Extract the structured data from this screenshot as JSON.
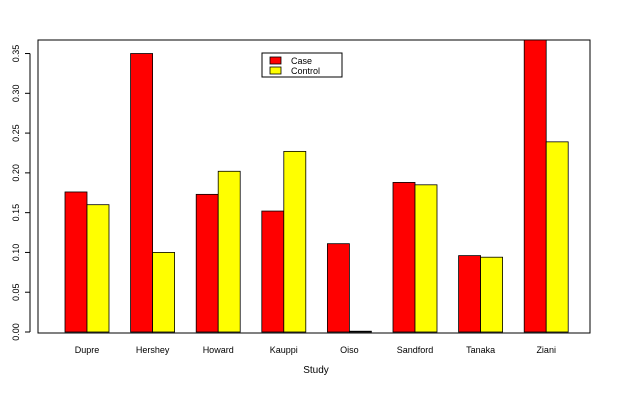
{
  "chart_data": {
    "type": "bar",
    "categories": [
      "Dupre",
      "Hershey",
      "Howard",
      "Kauppi",
      "Oiso",
      "Sandford",
      "Tanaka",
      "Ziani"
    ],
    "series": [
      {
        "name": "Case",
        "color": "#ff0000",
        "values": [
          0.176,
          0.35,
          0.173,
          0.152,
          0.111,
          0.188,
          0.096,
          0.367
        ]
      },
      {
        "name": "Control",
        "color": "#ffff00",
        "values": [
          0.16,
          0.1,
          0.202,
          0.227,
          0.001,
          0.185,
          0.094,
          0.239
        ]
      }
    ],
    "xlabel": "Study",
    "ylabel": "",
    "ylim": [
      0,
      0.367
    ],
    "yticks": [
      "0.00",
      "0.05",
      "0.10",
      "0.15",
      "0.20",
      "0.25",
      "0.30",
      "0.35"
    ],
    "legend_position": "top-center",
    "grid": false
  }
}
